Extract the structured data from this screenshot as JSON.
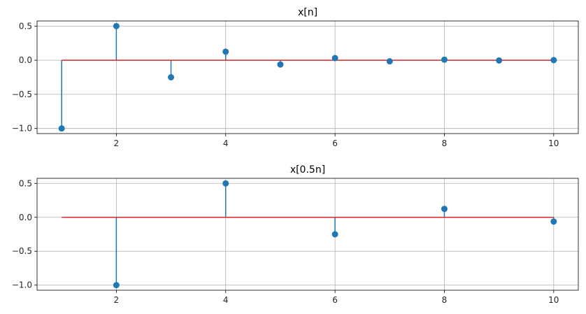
{
  "chart_data": [
    {
      "type": "stem",
      "title": "x[n]",
      "xlabel": "",
      "ylabel": "",
      "xlim": [
        0.55,
        10.45
      ],
      "ylim": [
        -1.075,
        0.575
      ],
      "xticks": [
        2,
        4,
        6,
        8,
        10
      ],
      "xtick_labels": [
        "2",
        "4",
        "6",
        "8",
        "10"
      ],
      "yticks": [
        0.5,
        0.0,
        -0.5,
        -1.0
      ],
      "ytick_labels": [
        "0.5",
        "0.0",
        "−0.5",
        "−1.0"
      ],
      "grid": true,
      "baseline": {
        "from": 1,
        "to": 10,
        "y": 0
      },
      "x": [
        1,
        2,
        3,
        4,
        5,
        6,
        7,
        8,
        9,
        10
      ],
      "values": [
        -1.0,
        0.5,
        -0.25,
        0.125,
        -0.0625,
        0.03125,
        -0.015625,
        0.0078125,
        -0.00390625,
        0.001953125
      ]
    },
    {
      "type": "stem",
      "title": "x[0.5n]",
      "xlabel": "",
      "ylabel": "",
      "xlim": [
        0.55,
        10.45
      ],
      "ylim": [
        -1.075,
        0.575
      ],
      "xticks": [
        2,
        4,
        6,
        8,
        10
      ],
      "xtick_labels": [
        "2",
        "4",
        "6",
        "8",
        "10"
      ],
      "yticks": [
        0.5,
        0.0,
        -0.5,
        -1.0
      ],
      "ytick_labels": [
        "0.5",
        "0.0",
        "−0.5",
        "−1.0"
      ],
      "grid": true,
      "baseline": {
        "from": 1,
        "to": 10,
        "y": 0
      },
      "x": [
        2,
        4,
        6,
        8,
        10
      ],
      "values": [
        -1.0,
        0.5,
        -0.25,
        0.125,
        -0.0625
      ]
    }
  ],
  "colors": {
    "stem": "#1f77b4",
    "baseline": "#d62728",
    "grid": "#b0b0b0",
    "frame": "#000000"
  }
}
